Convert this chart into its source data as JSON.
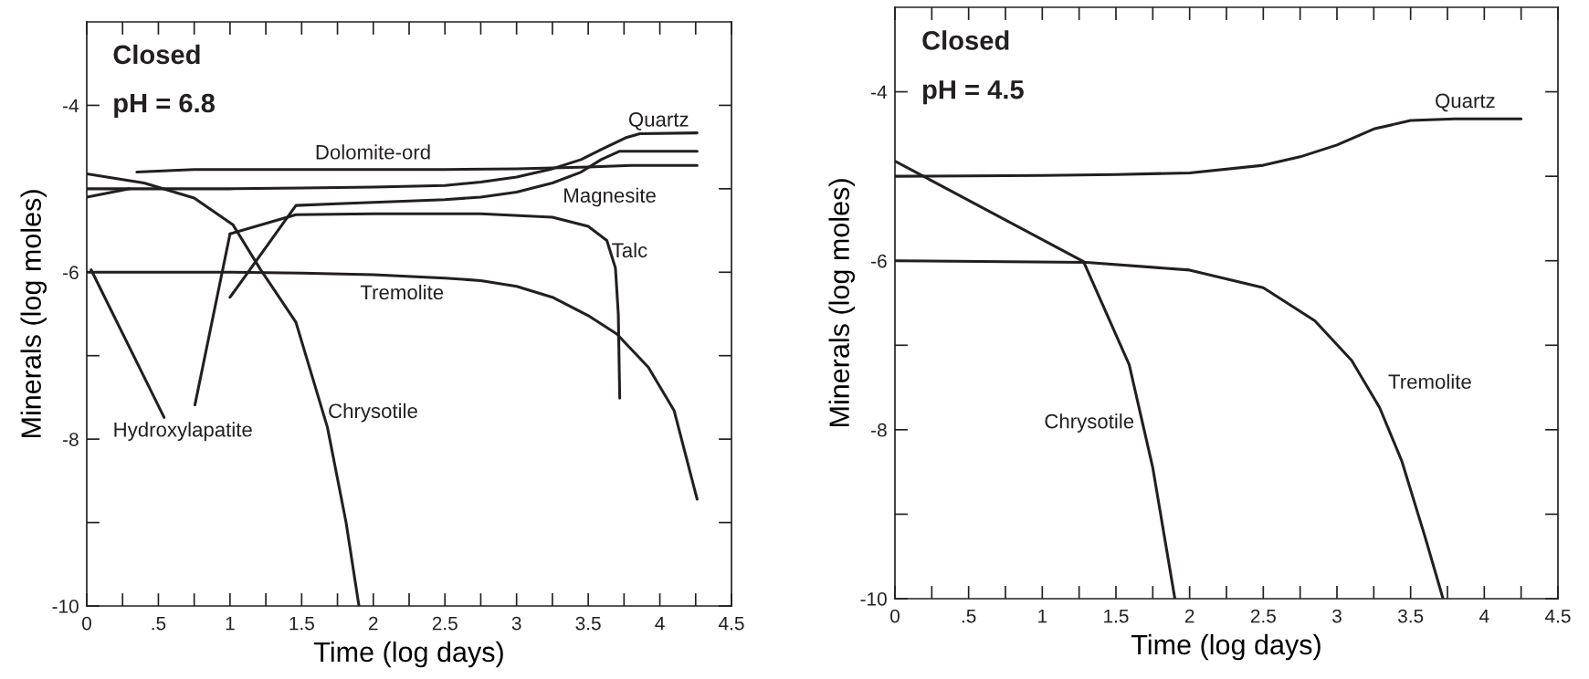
{
  "chart_data": [
    {
      "type": "line",
      "xlabel": "Time (log days)",
      "ylabel": "Minerals (log moles)",
      "xlim": [
        0,
        4.5
      ],
      "ylim": [
        -10,
        -3
      ],
      "xticks": [
        0,
        {
          "value": 0.25,
          "label": null
        },
        {
          "value": 0.5,
          "label": ".5"
        },
        {
          "value": 0.75,
          "label": null
        },
        1,
        {
          "value": 1.25,
          "label": null
        },
        1.5,
        {
          "value": 1.75,
          "label": null
        },
        2,
        {
          "value": 2.25,
          "label": null
        },
        2.5,
        {
          "value": 2.75,
          "label": null
        },
        3,
        {
          "value": 3.25,
          "label": null
        },
        3.5,
        {
          "value": 3.75,
          "label": null
        },
        4,
        {
          "value": 4.25,
          "label": null
        },
        4.5
      ],
      "yticks": [
        -10,
        {
          "value": -9,
          "label": null
        },
        -8,
        {
          "value": -7,
          "label": null
        },
        -6,
        {
          "value": -5,
          "label": null
        },
        -4
      ],
      "grid": false,
      "line_style": "solid",
      "marker": "none",
      "series": [
        {
          "color": "#231f20",
          "x": [
            0,
            0.5,
            1,
            1.5,
            2,
            2.5,
            2.75,
            3.0,
            3.25,
            3.45,
            3.59,
            3.76,
            3.86,
            4.26
          ],
          "values": [
            -5.0,
            -5.0,
            -5.0,
            -4.99,
            -4.98,
            -4.96,
            -4.92,
            -4.86,
            -4.76,
            -4.65,
            -4.53,
            -4.39,
            -4.34,
            -4.33
          ]
        },
        {
          "color": "#231f20",
          "x": [
            0.35,
            0.75,
            1.5,
            2.5,
            3.0,
            3.5,
            3.8,
            4.26
          ],
          "values": [
            -4.8,
            -4.77,
            -4.77,
            -4.77,
            -4.76,
            -4.74,
            -4.72,
            -4.72
          ]
        },
        {
          "color": "#231f20",
          "x": [
            1.0,
            1.46,
            1.75,
            2.5,
            2.75,
            3.0,
            3.25,
            3.45,
            3.59,
            3.72,
            4.26
          ],
          "values": [
            -6.3,
            -5.2,
            -5.18,
            -5.13,
            -5.1,
            -5.04,
            -4.93,
            -4.8,
            -4.65,
            -4.55,
            -4.55
          ]
        },
        {
          "color": "#231f20",
          "x": [
            1.0,
            1.46,
            2.0,
            2.75,
            3.25,
            3.5,
            3.63,
            3.69,
            3.71,
            3.72
          ],
          "values": [
            -5.54,
            -5.31,
            -5.3,
            -5.3,
            -5.34,
            -5.45,
            -5.62,
            -5.95,
            -6.5,
            -7.51
          ]
        },
        {
          "color": "#231f20",
          "x": [
            0.03,
            0.54,
            0.62,
            0.755,
            1.0
          ],
          "values": [
            -5.97,
            -7.74,
            null,
            -7.59,
            -5.54
          ]
        },
        {
          "color": "#231f20",
          "x": [
            0,
            0.5,
            1,
            1.5,
            2,
            2.5,
            2.75,
            3.0,
            3.25,
            3.5,
            3.7,
            3.92,
            4.1,
            4.26
          ],
          "values": [
            -6.0,
            -6.0,
            -6.0,
            -6.01,
            -6.03,
            -6.07,
            -6.1,
            -6.17,
            -6.3,
            -6.52,
            -6.74,
            -7.14,
            -7.66,
            -8.72
          ]
        },
        {
          "color": "#231f20",
          "x": [
            0,
            0.4,
            0.75,
            1.02,
            1.21,
            1.46,
            1.68,
            1.81,
            1.9
          ],
          "values": [
            -4.82,
            -4.93,
            -5.11,
            -5.43,
            -5.96,
            -6.6,
            -7.86,
            -9.0,
            -10
          ]
        },
        {
          "color": "#231f20",
          "x": [
            0,
            0.3
          ],
          "values": [
            -5.1,
            -5.0
          ]
        }
      ],
      "annotations": [
        "Closed",
        "pH = 6.8",
        "Quartz",
        "Dolomite-ord",
        "Magnesite",
        "Talc",
        "Tremolite",
        "Chrysotile",
        "Hydroxylapatite"
      ]
    },
    {
      "type": "line",
      "xlabel": "Time (log days)",
      "ylabel": "Minerals (log moles)",
      "xlim": [
        0,
        4.5
      ],
      "ylim": [
        -10,
        -3
      ],
      "xticks": [
        0,
        {
          "value": 0.25,
          "label": null
        },
        {
          "value": 0.5,
          "label": ".5"
        },
        {
          "value": 0.75,
          "label": null
        },
        1,
        {
          "value": 1.25,
          "label": null
        },
        1.5,
        {
          "value": 1.75,
          "label": null
        },
        2,
        {
          "value": 2.25,
          "label": null
        },
        2.5,
        {
          "value": 2.75,
          "label": null
        },
        3,
        {
          "value": 3.25,
          "label": null
        },
        3.5,
        {
          "value": 3.75,
          "label": null
        },
        4,
        {
          "value": 4.25,
          "label": null
        },
        4.5
      ],
      "yticks": [
        -10,
        {
          "value": -9,
          "label": null
        },
        -8,
        {
          "value": -7,
          "label": null
        },
        -6,
        {
          "value": -5,
          "label": null
        },
        -4
      ],
      "grid": false,
      "line_style": "solid",
      "marker": "none",
      "series": [
        {
          "color": "#231f20",
          "x": [
            0,
            1.0,
            1.5,
            2.0,
            2.5,
            2.75,
            3.0,
            3.25,
            3.5,
            3.8,
            4.25
          ],
          "values": [
            -5.0,
            -4.99,
            -4.98,
            -4.96,
            -4.87,
            -4.77,
            -4.63,
            -4.44,
            -4.34,
            -4.32,
            -4.32
          ]
        },
        {
          "color": "#231f20",
          "x": [
            0,
            1.28,
            1.59,
            1.75,
            1.9
          ],
          "values": [
            -4.82,
            -6.01,
            -7.23,
            -8.45,
            -10
          ]
        },
        {
          "color": "#231f20",
          "x": [
            0,
            1.3,
            2.0,
            2.5,
            2.85,
            3.1,
            3.29,
            3.44,
            3.6,
            3.72
          ],
          "values": [
            -6.0,
            -6.02,
            -6.11,
            -6.32,
            -6.71,
            -7.18,
            -7.74,
            -8.37,
            -9.28,
            -10
          ]
        }
      ],
      "annotations": [
        "Closed",
        "pH = 4.5",
        "Quartz",
        "Tremolite",
        "Chrysotile"
      ]
    }
  ]
}
